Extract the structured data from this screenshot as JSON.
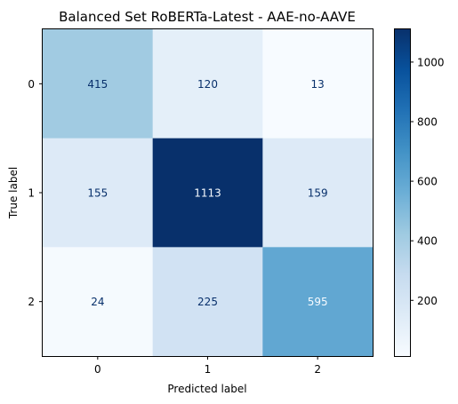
{
  "chart_data": {
    "type": "heatmap",
    "title": "Balanced Set RoBERTa-Latest - AAE-no-AAVE",
    "xlabel": "Predicted label",
    "ylabel": "True label",
    "x_categories": [
      "0",
      "1",
      "2"
    ],
    "y_categories": [
      "0",
      "1",
      "2"
    ],
    "values": [
      [
        415,
        120,
        13
      ],
      [
        155,
        1113,
        159
      ],
      [
        24,
        225,
        595
      ]
    ],
    "colormap": "Blues",
    "color_range": [
      13,
      1113
    ],
    "colorbar_ticks": [
      200,
      400,
      600,
      800,
      1000
    ],
    "colors": {
      "low": "#f7fbff",
      "high": "#08306b",
      "text_dark": "#08306b",
      "text_light": "#f7fbff"
    }
  }
}
